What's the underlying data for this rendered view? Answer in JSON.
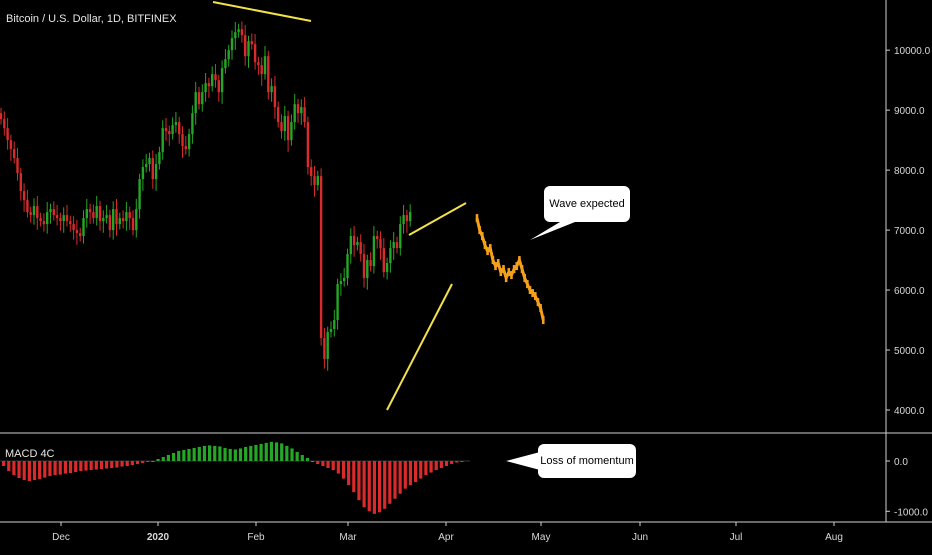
{
  "header": {
    "symbol_line": "Bitcoin / U.S. Dollar, 1D, BITFINEX"
  },
  "indicator": {
    "name": "MACD 4C"
  },
  "callouts": {
    "wave": "Wave expected",
    "momentum": "Loss of momentum"
  },
  "colors": {
    "up": "#26a626",
    "down": "#d92b2b",
    "projection": "#f5a01a",
    "trendline": "#f2e14a",
    "background": "#000000",
    "grid": "#2a2a2a"
  },
  "chart_data": [
    {
      "type": "candlestick",
      "title": "Bitcoin / U.S. Dollar, 1D, BITFINEX",
      "ylim": [
        3700,
        10700
      ],
      "yticks": [
        4000,
        5000,
        6000,
        7000,
        8000,
        9000,
        10000
      ],
      "ytick_labels": [
        "4000.0",
        "5000.0",
        "6000.0",
        "7000.0",
        "8000.0",
        "9000.0",
        "10000.0"
      ],
      "xticks": [
        "Dec",
        "2020",
        "Feb",
        "Mar",
        "Apr",
        "May",
        "Jun",
        "Jul",
        "Aug"
      ],
      "series": [
        {
          "name": "close",
          "values": [
            8850,
            8700,
            8500,
            8350,
            8200,
            7950,
            7650,
            7500,
            7300,
            7250,
            7400,
            7200,
            7150,
            7100,
            7300,
            7350,
            7250,
            7200,
            7150,
            7250,
            7150,
            7100,
            7000,
            6950,
            6900,
            7200,
            7350,
            7300,
            7200,
            7400,
            7150,
            7200,
            7250,
            7000,
            7350,
            7100,
            7200,
            7150,
            7300,
            7200,
            7000,
            7350,
            7850,
            8050,
            8100,
            8200,
            7850,
            8100,
            8300,
            8700,
            8650,
            8600,
            8750,
            8800,
            8600,
            8400,
            8350,
            8600,
            8950,
            9300,
            9100,
            9300,
            9450,
            9400,
            9600,
            9500,
            9300,
            9700,
            9850,
            10000,
            10200,
            10300,
            10350,
            10250,
            9900,
            10150,
            10100,
            9800,
            9750,
            9600,
            9900,
            9300,
            9400,
            9050,
            8800,
            8650,
            8900,
            8500,
            8800,
            9100,
            8950,
            9050,
            8800,
            8050,
            7900,
            7750,
            7900,
            5200,
            4850,
            5300,
            5350,
            5500,
            6100,
            6150,
            6200,
            6600,
            6900,
            6750,
            6800,
            6600,
            6200,
            6500,
            6400,
            6900,
            6850,
            6700,
            6300,
            6450,
            6700,
            6800,
            6700,
            7100,
            7250,
            7150,
            7300
          ]
        },
        {
          "name": "projection",
          "values": [
            7200,
            7000,
            6900,
            6750,
            6650,
            6700,
            6500,
            6400,
            6450,
            6300,
            6350,
            6200,
            6300,
            6250,
            6350,
            6400,
            6500,
            6350,
            6200,
            6100,
            6000,
            5950,
            5900,
            5800,
            5700,
            5500
          ]
        }
      ]
    },
    {
      "type": "bar",
      "title": "MACD 4C",
      "ylim": [
        -1150,
        450
      ],
      "yticks": [
        0,
        -1000
      ],
      "ytick_labels": [
        "0.0",
        "-1000.0"
      ],
      "values": [
        -100,
        -200,
        -280,
        -340,
        -380,
        -400,
        -380,
        -360,
        -330,
        -300,
        -280,
        -270,
        -250,
        -240,
        -220,
        -200,
        -190,
        -180,
        -170,
        -160,
        -150,
        -140,
        -130,
        -110,
        -100,
        -80,
        -60,
        -40,
        -20,
        0,
        40,
        80,
        120,
        160,
        200,
        220,
        240,
        260,
        280,
        300,
        310,
        300,
        290,
        260,
        240,
        230,
        250,
        280,
        300,
        320,
        340,
        360,
        380,
        370,
        350,
        300,
        250,
        180,
        120,
        60,
        0,
        -60,
        -100,
        -140,
        -180,
        -250,
        -350,
        -480,
        -620,
        -780,
        -920,
        -1000,
        -1050,
        -1020,
        -950,
        -850,
        -750,
        -650,
        -550,
        -480,
        -420,
        -350,
        -280,
        -230,
        -180,
        -140,
        -100,
        -60,
        -30,
        -10
      ]
    }
  ]
}
